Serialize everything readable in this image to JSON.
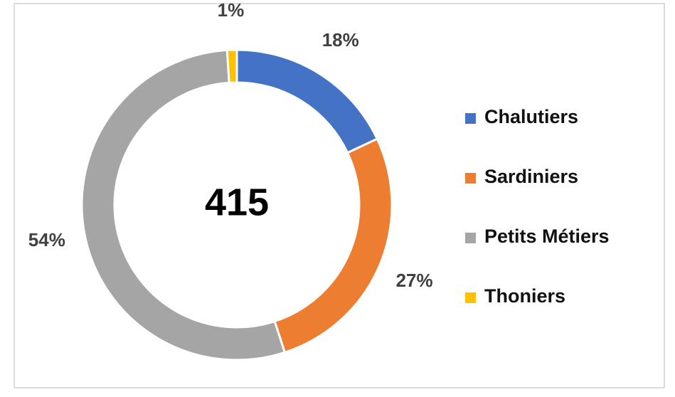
{
  "chart_data": {
    "type": "donut",
    "total": 415,
    "categories": [
      "Chalutiers",
      "Sardiniers",
      "Petits Métiers",
      "Thoniers"
    ],
    "values": [
      18,
      27,
      54,
      1
    ],
    "value_labels": [
      "18%",
      "27%",
      "54%",
      "1%"
    ],
    "colors": [
      "#4472c4",
      "#ed7d31",
      "#a5a5a5",
      "#ffc000"
    ],
    "legend": "right"
  }
}
